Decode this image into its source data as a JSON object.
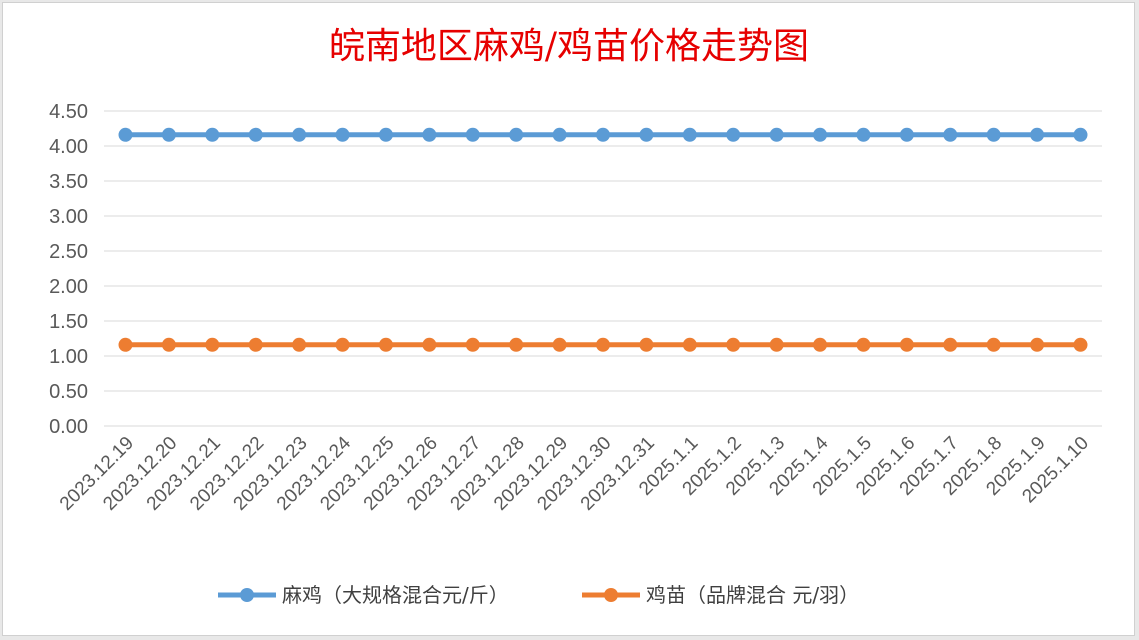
{
  "chart_data": {
    "type": "line",
    "title": "皖南地区麻鸡/鸡苗价格走势图",
    "title_color": "#e60000",
    "categories": [
      "2023.12.19",
      "2023.12.20",
      "2023.12.21",
      "2023.12.22",
      "2023.12.23",
      "2023.12.24",
      "2023.12.25",
      "2023.12.26",
      "2023.12.27",
      "2023.12.28",
      "2023.12.29",
      "2023.12.30",
      "2023.12.31",
      "2025.1.1",
      "2025.1.2",
      "2025.1.3",
      "2025.1.4",
      "2025.1.5",
      "2025.1.6",
      "2025.1.7",
      "2025.1.8",
      "2025.1.9",
      "2025.1.10"
    ],
    "y_ticks": [
      "0.00",
      "0.50",
      "1.00",
      "1.50",
      "2.00",
      "2.50",
      "3.00",
      "3.50",
      "4.00",
      "4.50"
    ],
    "ylim": [
      0,
      4.5
    ],
    "grid": true,
    "legend_position": "bottom",
    "series": [
      {
        "name": "麻鸡（大规格混合元/斤）",
        "color": "#5b9bd5",
        "values": [
          4.16,
          4.16,
          4.16,
          4.16,
          4.16,
          4.16,
          4.16,
          4.16,
          4.16,
          4.16,
          4.16,
          4.16,
          4.16,
          4.16,
          4.16,
          4.16,
          4.16,
          4.16,
          4.16,
          4.16,
          4.16,
          4.16,
          4.16
        ]
      },
      {
        "name": "鸡苗（品牌混合 元/羽）",
        "color": "#ed7d31",
        "values": [
          1.16,
          1.16,
          1.16,
          1.16,
          1.16,
          1.16,
          1.16,
          1.16,
          1.16,
          1.16,
          1.16,
          1.16,
          1.16,
          1.16,
          1.16,
          1.16,
          1.16,
          1.16,
          1.16,
          1.16,
          1.16,
          1.16,
          1.16
        ]
      }
    ]
  }
}
